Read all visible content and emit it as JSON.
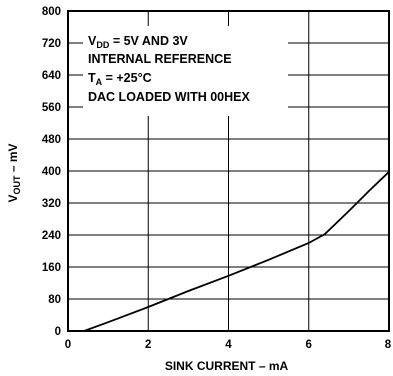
{
  "chart_data": {
    "type": "line",
    "xlabel": "SINK CURRENT – mA",
    "ylabel_main": "V",
    "ylabel_sub": "OUT",
    "ylabel_tail": " – mV",
    "xlim": [
      0,
      8
    ],
    "ylim": [
      0,
      800
    ],
    "xticks": [
      "0",
      "2",
      "4",
      "6",
      "8"
    ],
    "yticks": [
      "0",
      "80",
      "160",
      "240",
      "320",
      "400",
      "480",
      "560",
      "640",
      "720",
      "800"
    ],
    "grid": true,
    "annotations": {
      "line1_main": "V",
      "line1_sub": "DD",
      "line1_tail": " = 5V AND 3V",
      "line2": "INTERNAL REFERENCE",
      "line3_main": "T",
      "line3_sub": "A",
      "line3_tail": " = +25°C",
      "line4": "DAC LOADED WITH 00HEX"
    },
    "series": [
      {
        "x": [
          0.4,
          1.0,
          2.0,
          3.0,
          4.0,
          5.0,
          6.0,
          6.4,
          7.0,
          7.5,
          8.0
        ],
        "y": [
          0,
          22,
          60,
          100,
          138,
          178,
          220,
          242,
          300,
          350,
          398
        ]
      }
    ]
  }
}
